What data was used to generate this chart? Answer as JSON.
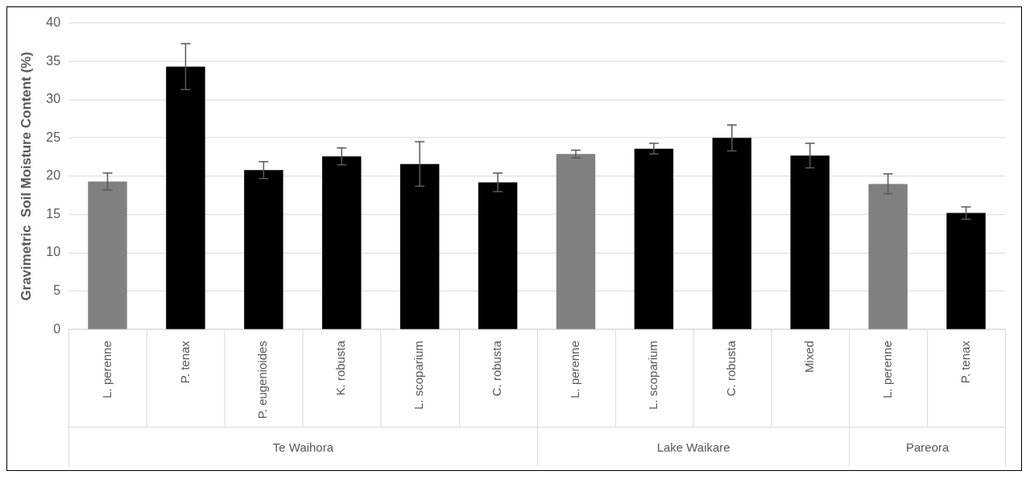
{
  "chart_data": {
    "type": "bar",
    "ylabel": "Gravimetric  Soil Moisture Content (%)",
    "categories": [
      "L. perenne",
      "P. tenax",
      "P. eugenioides",
      "K. robusta",
      "L. scoparium",
      "C. robusta",
      "L. perenne",
      "L. scoparium",
      "C. robusta",
      "Mixed",
      "L. perenne",
      "P. tenax"
    ],
    "values": [
      19.3,
      34.3,
      20.8,
      22.6,
      21.6,
      19.2,
      22.9,
      23.6,
      25.0,
      22.7,
      19.0,
      15.2
    ],
    "colors": [
      "#808080",
      "#000000",
      "#000000",
      "#000000",
      "#000000",
      "#000000",
      "#808080",
      "#000000",
      "#000000",
      "#000000",
      "#808080",
      "#000000"
    ],
    "errors": [
      1.1,
      3.0,
      1.1,
      1.1,
      2.9,
      1.2,
      0.5,
      0.7,
      1.7,
      1.6,
      1.3,
      0.8
    ],
    "annotations": [
      "Te Waihora",
      "Lake Waikare",
      "Pareora"
    ],
    "ylim": [
      0,
      40
    ],
    "yticks": [
      0,
      5,
      10,
      15,
      20,
      25,
      30,
      35,
      40
    ],
    "grid": "y",
    "legend": false
  }
}
